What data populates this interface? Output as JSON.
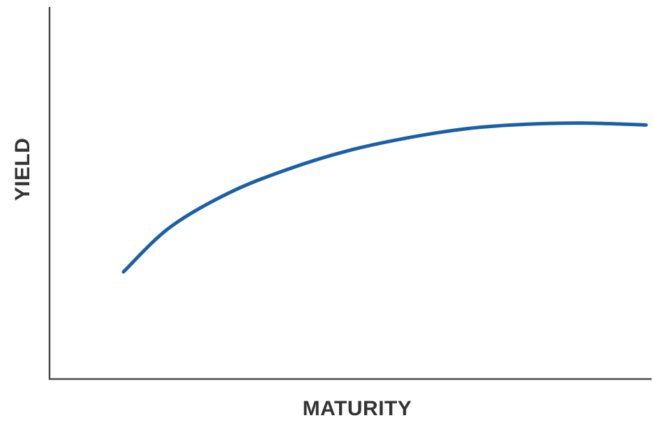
{
  "chart_data": {
    "type": "line",
    "title": "",
    "xlabel": "MATURITY",
    "ylabel": "YIELD",
    "xlim": [
      0,
      100
    ],
    "ylim": [
      0,
      100
    ],
    "grid": false,
    "legend": "none",
    "colors": {
      "series": "#1a5fa8",
      "axis": "#4a4a4a",
      "label": "#333333"
    },
    "series": [
      {
        "values_x": [
          12.3,
          20,
          30,
          40,
          50,
          60,
          70,
          80,
          90,
          100
        ],
        "values_y": [
          29,
          41,
          50.5,
          57,
          62,
          65.5,
          68,
          69.2,
          69.5,
          69
        ]
      }
    ]
  }
}
